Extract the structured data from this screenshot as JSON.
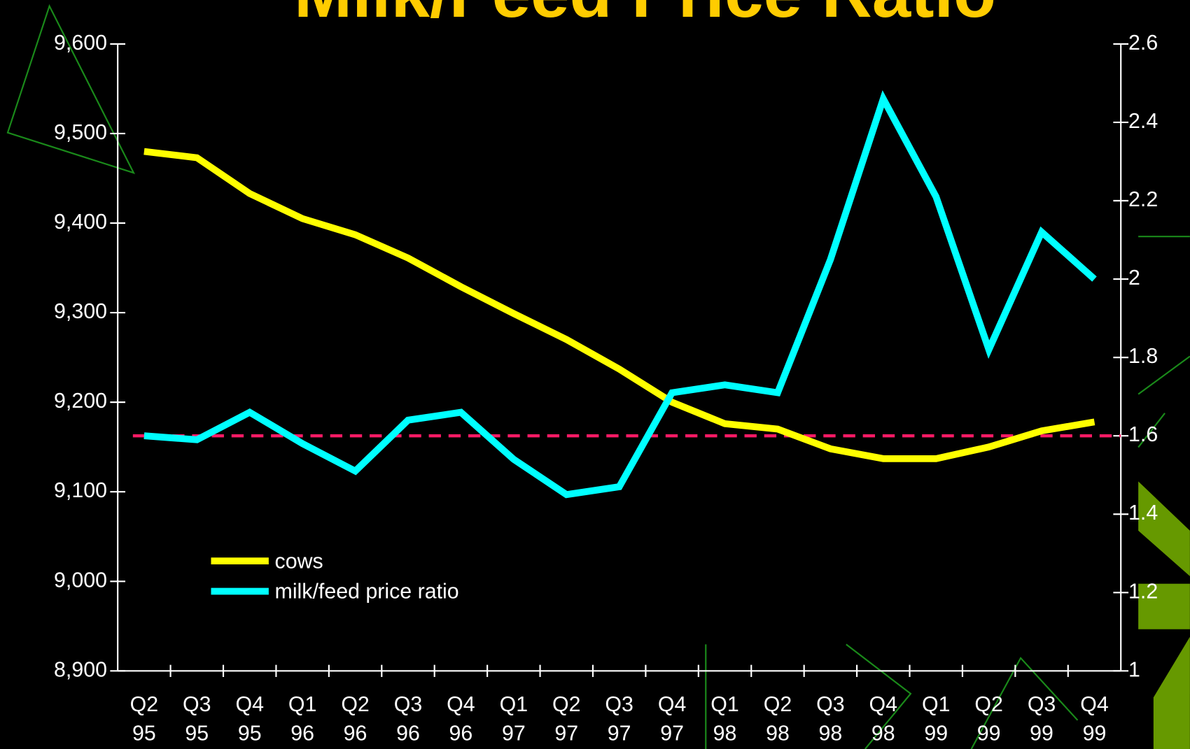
{
  "chart_data": {
    "type": "line",
    "title": "Milk/Feed Price Ratio",
    "categories": [
      "Q2 95",
      "Q3 95",
      "Q4 95",
      "Q1 96",
      "Q2 96",
      "Q3 96",
      "Q4 96",
      "Q1 97",
      "Q2 97",
      "Q3 97",
      "Q4 97",
      "Q1 98",
      "Q2 98",
      "Q3 98",
      "Q4 98",
      "Q1 99",
      "Q2 99",
      "Q3 99",
      "Q4 99"
    ],
    "series": [
      {
        "name": "cows",
        "color": "#ffff00",
        "values": [
          9480,
          9473,
          9433,
          9405,
          9387,
          9361,
          9329,
          9299,
          9270,
          9237,
          9200,
          9176,
          9170,
          9148,
          9137,
          9137,
          9150,
          9168,
          9178
        ]
      },
      {
        "name": "milk/feed price ratio",
        "color": "#00ffff",
        "axis": "y2",
        "values": [
          1.6,
          1.59,
          1.66,
          1.58,
          1.51,
          1.64,
          1.66,
          1.54,
          1.45,
          1.47,
          1.71,
          1.73,
          1.71,
          2.05,
          2.46,
          2.21,
          1.82,
          2.12,
          2.0
        ]
      }
    ],
    "reference_line": {
      "value": 1.6,
      "axis": "y2",
      "color": "#ff1a66"
    },
    "ylim": [
      8900,
      9600
    ],
    "yticks": [
      {
        "value": 8900,
        "label": "8,900"
      },
      {
        "value": 9000,
        "label": "9,000"
      },
      {
        "value": 9100,
        "label": "9,100"
      },
      {
        "value": 9200,
        "label": "9,200"
      },
      {
        "value": 9300,
        "label": "9,300"
      },
      {
        "value": 9400,
        "label": "9,400"
      },
      {
        "value": 9500,
        "label": "9,500"
      },
      {
        "value": 9600,
        "label": "9,600"
      }
    ],
    "y2lim": [
      1,
      2.6
    ],
    "y2ticks": [
      1,
      1.2,
      1.4,
      1.6,
      1.8,
      2,
      2.2,
      2.4,
      2.6
    ],
    "grid": false,
    "legend": "lower-left"
  }
}
